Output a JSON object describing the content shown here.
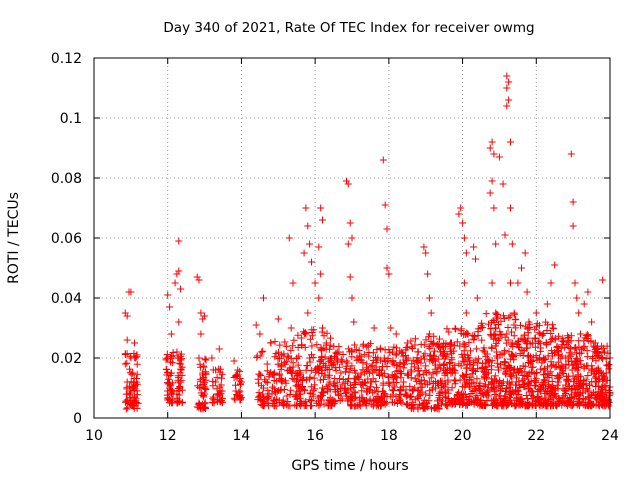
{
  "chart_data": {
    "type": "scatter",
    "title": "Day 340 of 2021, Rate Of TEC Index for receiver owmg",
    "xlabel": "GPS time / hours",
    "ylabel": "ROTI / TECUs",
    "xlim": [
      10,
      24
    ],
    "ylim": [
      0,
      0.12
    ],
    "xticks": [
      10,
      12,
      14,
      16,
      18,
      20,
      22,
      24
    ],
    "xtick_labels": [
      "10",
      "12",
      "14",
      "16",
      "18",
      "20",
      "22",
      "24"
    ],
    "yticks": [
      0,
      0.02,
      0.04,
      0.06,
      0.08,
      0.1,
      0.12
    ],
    "ytick_labels": [
      "0",
      "0.02",
      "0.04",
      "0.06",
      "0.08",
      "0.1",
      "0.12"
    ],
    "grid": true,
    "marker": "+",
    "color": "#ff0000",
    "points": [
      [
        10.85,
        0.035
      ],
      [
        10.9,
        0.034
      ],
      [
        10.95,
        0.042
      ],
      [
        11.0,
        0.042
      ],
      [
        10.9,
        0.026
      ],
      [
        11.0,
        0.02
      ],
      [
        11.1,
        0.025
      ],
      [
        11.05,
        0.015
      ],
      [
        10.9,
        0.012
      ],
      [
        11.0,
        0.009
      ],
      [
        11.1,
        0.007
      ],
      [
        10.95,
        0.005
      ],
      [
        11.05,
        0.004
      ],
      [
        10.85,
        0.018
      ],
      [
        11.15,
        0.012
      ],
      [
        12.0,
        0.041
      ],
      [
        12.05,
        0.037
      ],
      [
        12.1,
        0.028
      ],
      [
        12.0,
        0.02
      ],
      [
        12.1,
        0.015
      ],
      [
        12.05,
        0.01
      ],
      [
        12.15,
        0.008
      ],
      [
        12.0,
        0.006
      ],
      [
        12.2,
        0.045
      ],
      [
        12.25,
        0.048
      ],
      [
        12.3,
        0.049
      ],
      [
        12.3,
        0.059
      ],
      [
        12.35,
        0.043
      ],
      [
        12.3,
        0.032
      ],
      [
        12.25,
        0.022
      ],
      [
        12.35,
        0.018
      ],
      [
        12.3,
        0.012
      ],
      [
        12.25,
        0.008
      ],
      [
        12.8,
        0.047
      ],
      [
        12.85,
        0.046
      ],
      [
        12.9,
        0.035
      ],
      [
        12.95,
        0.033
      ],
      [
        13.0,
        0.034
      ],
      [
        12.9,
        0.028
      ],
      [
        12.85,
        0.02
      ],
      [
        12.95,
        0.015
      ],
      [
        12.9,
        0.01
      ],
      [
        12.85,
        0.005
      ],
      [
        13.0,
        0.008
      ],
      [
        13.2,
        0.02
      ],
      [
        13.3,
        0.016
      ],
      [
        13.4,
        0.023
      ],
      [
        13.3,
        0.012
      ],
      [
        13.35,
        0.008
      ],
      [
        13.25,
        0.006
      ],
      [
        13.45,
        0.011
      ],
      [
        13.8,
        0.019
      ],
      [
        13.9,
        0.016
      ],
      [
        14.0,
        0.012
      ],
      [
        13.85,
        0.009
      ],
      [
        13.95,
        0.007
      ],
      [
        14.4,
        0.031
      ],
      [
        14.5,
        0.028
      ],
      [
        14.6,
        0.04
      ],
      [
        14.55,
        0.022
      ],
      [
        14.7,
        0.018
      ],
      [
        14.8,
        0.025
      ],
      [
        14.9,
        0.015
      ],
      [
        14.6,
        0.01
      ],
      [
        14.75,
        0.008
      ],
      [
        14.9,
        0.006
      ],
      [
        15.0,
        0.033
      ],
      [
        15.1,
        0.012
      ],
      [
        15.3,
        0.06
      ],
      [
        15.4,
        0.045
      ],
      [
        15.35,
        0.03
      ],
      [
        15.5,
        0.02
      ],
      [
        15.6,
        0.015
      ],
      [
        15.7,
        0.055
      ],
      [
        15.75,
        0.07
      ],
      [
        15.8,
        0.064
      ],
      [
        15.85,
        0.058
      ],
      [
        15.9,
        0.052
      ],
      [
        15.8,
        0.035
      ],
      [
        15.75,
        0.028
      ],
      [
        15.85,
        0.02
      ],
      [
        15.6,
        0.008
      ],
      [
        15.7,
        0.005
      ],
      [
        16.0,
        0.045
      ],
      [
        16.1,
        0.04
      ],
      [
        16.15,
        0.07
      ],
      [
        16.2,
        0.066
      ],
      [
        16.1,
        0.057
      ],
      [
        16.15,
        0.048
      ],
      [
        16.2,
        0.03
      ],
      [
        16.3,
        0.025
      ],
      [
        16.1,
        0.015
      ],
      [
        16.2,
        0.01
      ],
      [
        16.35,
        0.006
      ],
      [
        16.4,
        0.012
      ],
      [
        16.5,
        0.018
      ],
      [
        16.6,
        0.022
      ],
      [
        16.7,
        0.015
      ],
      [
        16.8,
        0.01
      ],
      [
        16.85,
        0.079
      ],
      [
        16.9,
        0.078
      ],
      [
        16.95,
        0.065
      ],
      [
        16.9,
        0.058
      ],
      [
        17.0,
        0.06
      ],
      [
        16.95,
        0.047
      ],
      [
        17.0,
        0.04
      ],
      [
        17.05,
        0.032
      ],
      [
        17.0,
        0.022
      ],
      [
        17.1,
        0.015
      ],
      [
        17.0,
        0.008
      ],
      [
        17.3,
        0.024
      ],
      [
        17.4,
        0.018
      ],
      [
        17.5,
        0.012
      ],
      [
        17.6,
        0.03
      ],
      [
        17.7,
        0.02
      ],
      [
        17.8,
        0.015
      ],
      [
        17.85,
        0.086
      ],
      [
        17.9,
        0.071
      ],
      [
        17.95,
        0.063
      ],
      [
        17.95,
        0.05
      ],
      [
        18.0,
        0.048
      ],
      [
        18.05,
        0.03
      ],
      [
        18.1,
        0.022
      ],
      [
        18.0,
        0.012
      ],
      [
        17.9,
        0.008
      ],
      [
        18.2,
        0.028
      ],
      [
        18.3,
        0.018
      ],
      [
        18.4,
        0.012
      ],
      [
        18.5,
        0.025
      ],
      [
        18.6,
        0.016
      ],
      [
        18.7,
        0.01
      ],
      [
        18.8,
        0.022
      ],
      [
        18.95,
        0.057
      ],
      [
        19.0,
        0.055
      ],
      [
        19.05,
        0.048
      ],
      [
        19.1,
        0.04
      ],
      [
        19.15,
        0.035
      ],
      [
        19.1,
        0.028
      ],
      [
        19.2,
        0.02
      ],
      [
        19.1,
        0.012
      ],
      [
        19.0,
        0.008
      ],
      [
        19.3,
        0.015
      ],
      [
        19.4,
        0.022
      ],
      [
        19.5,
        0.018
      ],
      [
        19.6,
        0.012
      ],
      [
        19.7,
        0.025
      ],
      [
        19.8,
        0.015
      ],
      [
        19.9,
        0.068
      ],
      [
        19.95,
        0.07
      ],
      [
        20.0,
        0.065
      ],
      [
        20.05,
        0.06
      ],
      [
        20.1,
        0.055
      ],
      [
        20.05,
        0.045
      ],
      [
        20.1,
        0.035
      ],
      [
        20.15,
        0.028
      ],
      [
        20.2,
        0.02
      ],
      [
        20.1,
        0.012
      ],
      [
        20.0,
        0.006
      ],
      [
        20.3,
        0.057
      ],
      [
        20.35,
        0.053
      ],
      [
        20.4,
        0.04
      ],
      [
        20.5,
        0.03
      ],
      [
        20.6,
        0.022
      ],
      [
        20.7,
        0.015
      ],
      [
        20.75,
        0.09
      ],
      [
        20.8,
        0.092
      ],
      [
        20.85,
        0.088
      ],
      [
        20.8,
        0.079
      ],
      [
        20.75,
        0.075
      ],
      [
        20.85,
        0.07
      ],
      [
        20.9,
        0.058
      ],
      [
        20.8,
        0.045
      ],
      [
        20.9,
        0.035
      ],
      [
        20.85,
        0.028
      ],
      [
        20.95,
        0.02
      ],
      [
        20.8,
        0.012
      ],
      [
        21.0,
        0.087
      ],
      [
        21.1,
        0.078
      ],
      [
        21.15,
        0.061
      ],
      [
        21.2,
        0.114
      ],
      [
        21.25,
        0.112
      ],
      [
        21.2,
        0.11
      ],
      [
        21.25,
        0.106
      ],
      [
        21.2,
        0.104
      ],
      [
        21.3,
        0.092
      ],
      [
        21.3,
        0.07
      ],
      [
        21.35,
        0.058
      ],
      [
        21.3,
        0.045
      ],
      [
        21.4,
        0.035
      ],
      [
        21.35,
        0.025
      ],
      [
        21.45,
        0.015
      ],
      [
        21.3,
        0.008
      ],
      [
        21.5,
        0.045
      ],
      [
        21.6,
        0.05
      ],
      [
        21.7,
        0.055
      ],
      [
        21.75,
        0.042
      ],
      [
        21.8,
        0.032
      ],
      [
        21.9,
        0.025
      ],
      [
        22.0,
        0.035
      ],
      [
        22.1,
        0.028
      ],
      [
        22.2,
        0.02
      ],
      [
        22.3,
        0.038
      ],
      [
        22.4,
        0.045
      ],
      [
        22.5,
        0.051
      ],
      [
        22.45,
        0.03
      ],
      [
        22.6,
        0.022
      ],
      [
        22.7,
        0.015
      ],
      [
        22.8,
        0.02
      ],
      [
        22.95,
        0.088
      ],
      [
        23.0,
        0.072
      ],
      [
        23.0,
        0.064
      ],
      [
        23.05,
        0.045
      ],
      [
        23.1,
        0.04
      ],
      [
        23.15,
        0.035
      ],
      [
        23.2,
        0.028
      ],
      [
        23.3,
        0.038
      ],
      [
        23.4,
        0.042
      ],
      [
        23.5,
        0.032
      ],
      [
        23.6,
        0.025
      ],
      [
        23.7,
        0.02
      ],
      [
        23.8,
        0.046
      ],
      [
        23.85,
        0.022
      ],
      [
        23.9,
        0.015
      ],
      [
        24.0,
        0.02
      ],
      [
        21.8,
        0.012
      ],
      [
        22.0,
        0.015
      ],
      [
        22.2,
        0.01
      ],
      [
        22.4,
        0.008
      ],
      [
        22.6,
        0.012
      ],
      [
        22.8,
        0.009
      ],
      [
        23.0,
        0.014
      ],
      [
        23.2,
        0.011
      ],
      [
        23.4,
        0.009
      ],
      [
        23.6,
        0.012
      ],
      [
        23.8,
        0.01
      ],
      [
        24.0,
        0.008
      ]
    ],
    "dense_bands": [
      {
        "x": [
          10.85,
          11.2
        ],
        "y": [
          0.003,
          0.024
        ],
        "n": 60
      },
      {
        "x": [
          11.95,
          12.15
        ],
        "y": [
          0.005,
          0.022
        ],
        "n": 40
      },
      {
        "x": [
          12.25,
          12.4
        ],
        "y": [
          0.005,
          0.022
        ],
        "n": 35
      },
      {
        "x": [
          12.8,
          13.05
        ],
        "y": [
          0.003,
          0.02
        ],
        "n": 45
      },
      {
        "x": [
          13.2,
          13.5
        ],
        "y": [
          0.005,
          0.017
        ],
        "n": 30
      },
      {
        "x": [
          13.8,
          14.0
        ],
        "y": [
          0.006,
          0.016
        ],
        "n": 25
      },
      {
        "x": [
          14.4,
          15.5
        ],
        "y": [
          0.004,
          0.026
        ],
        "n": 130
      },
      {
        "x": [
          15.5,
          16.5
        ],
        "y": [
          0.004,
          0.03
        ],
        "n": 160
      },
      {
        "x": [
          16.5,
          17.5
        ],
        "y": [
          0.004,
          0.025
        ],
        "n": 150
      },
      {
        "x": [
          17.5,
          18.5
        ],
        "y": [
          0.004,
          0.024
        ],
        "n": 150
      },
      {
        "x": [
          18.5,
          19.5
        ],
        "y": [
          0.003,
          0.028
        ],
        "n": 170
      },
      {
        "x": [
          19.5,
          20.5
        ],
        "y": [
          0.004,
          0.03
        ],
        "n": 200
      },
      {
        "x": [
          20.5,
          21.5
        ],
        "y": [
          0.004,
          0.035
        ],
        "n": 240
      },
      {
        "x": [
          21.5,
          22.5
        ],
        "y": [
          0.004,
          0.032
        ],
        "n": 240
      },
      {
        "x": [
          22.5,
          23.5
        ],
        "y": [
          0.004,
          0.028
        ],
        "n": 220
      },
      {
        "x": [
          23.5,
          24.0
        ],
        "y": [
          0.004,
          0.024
        ],
        "n": 120
      }
    ]
  }
}
